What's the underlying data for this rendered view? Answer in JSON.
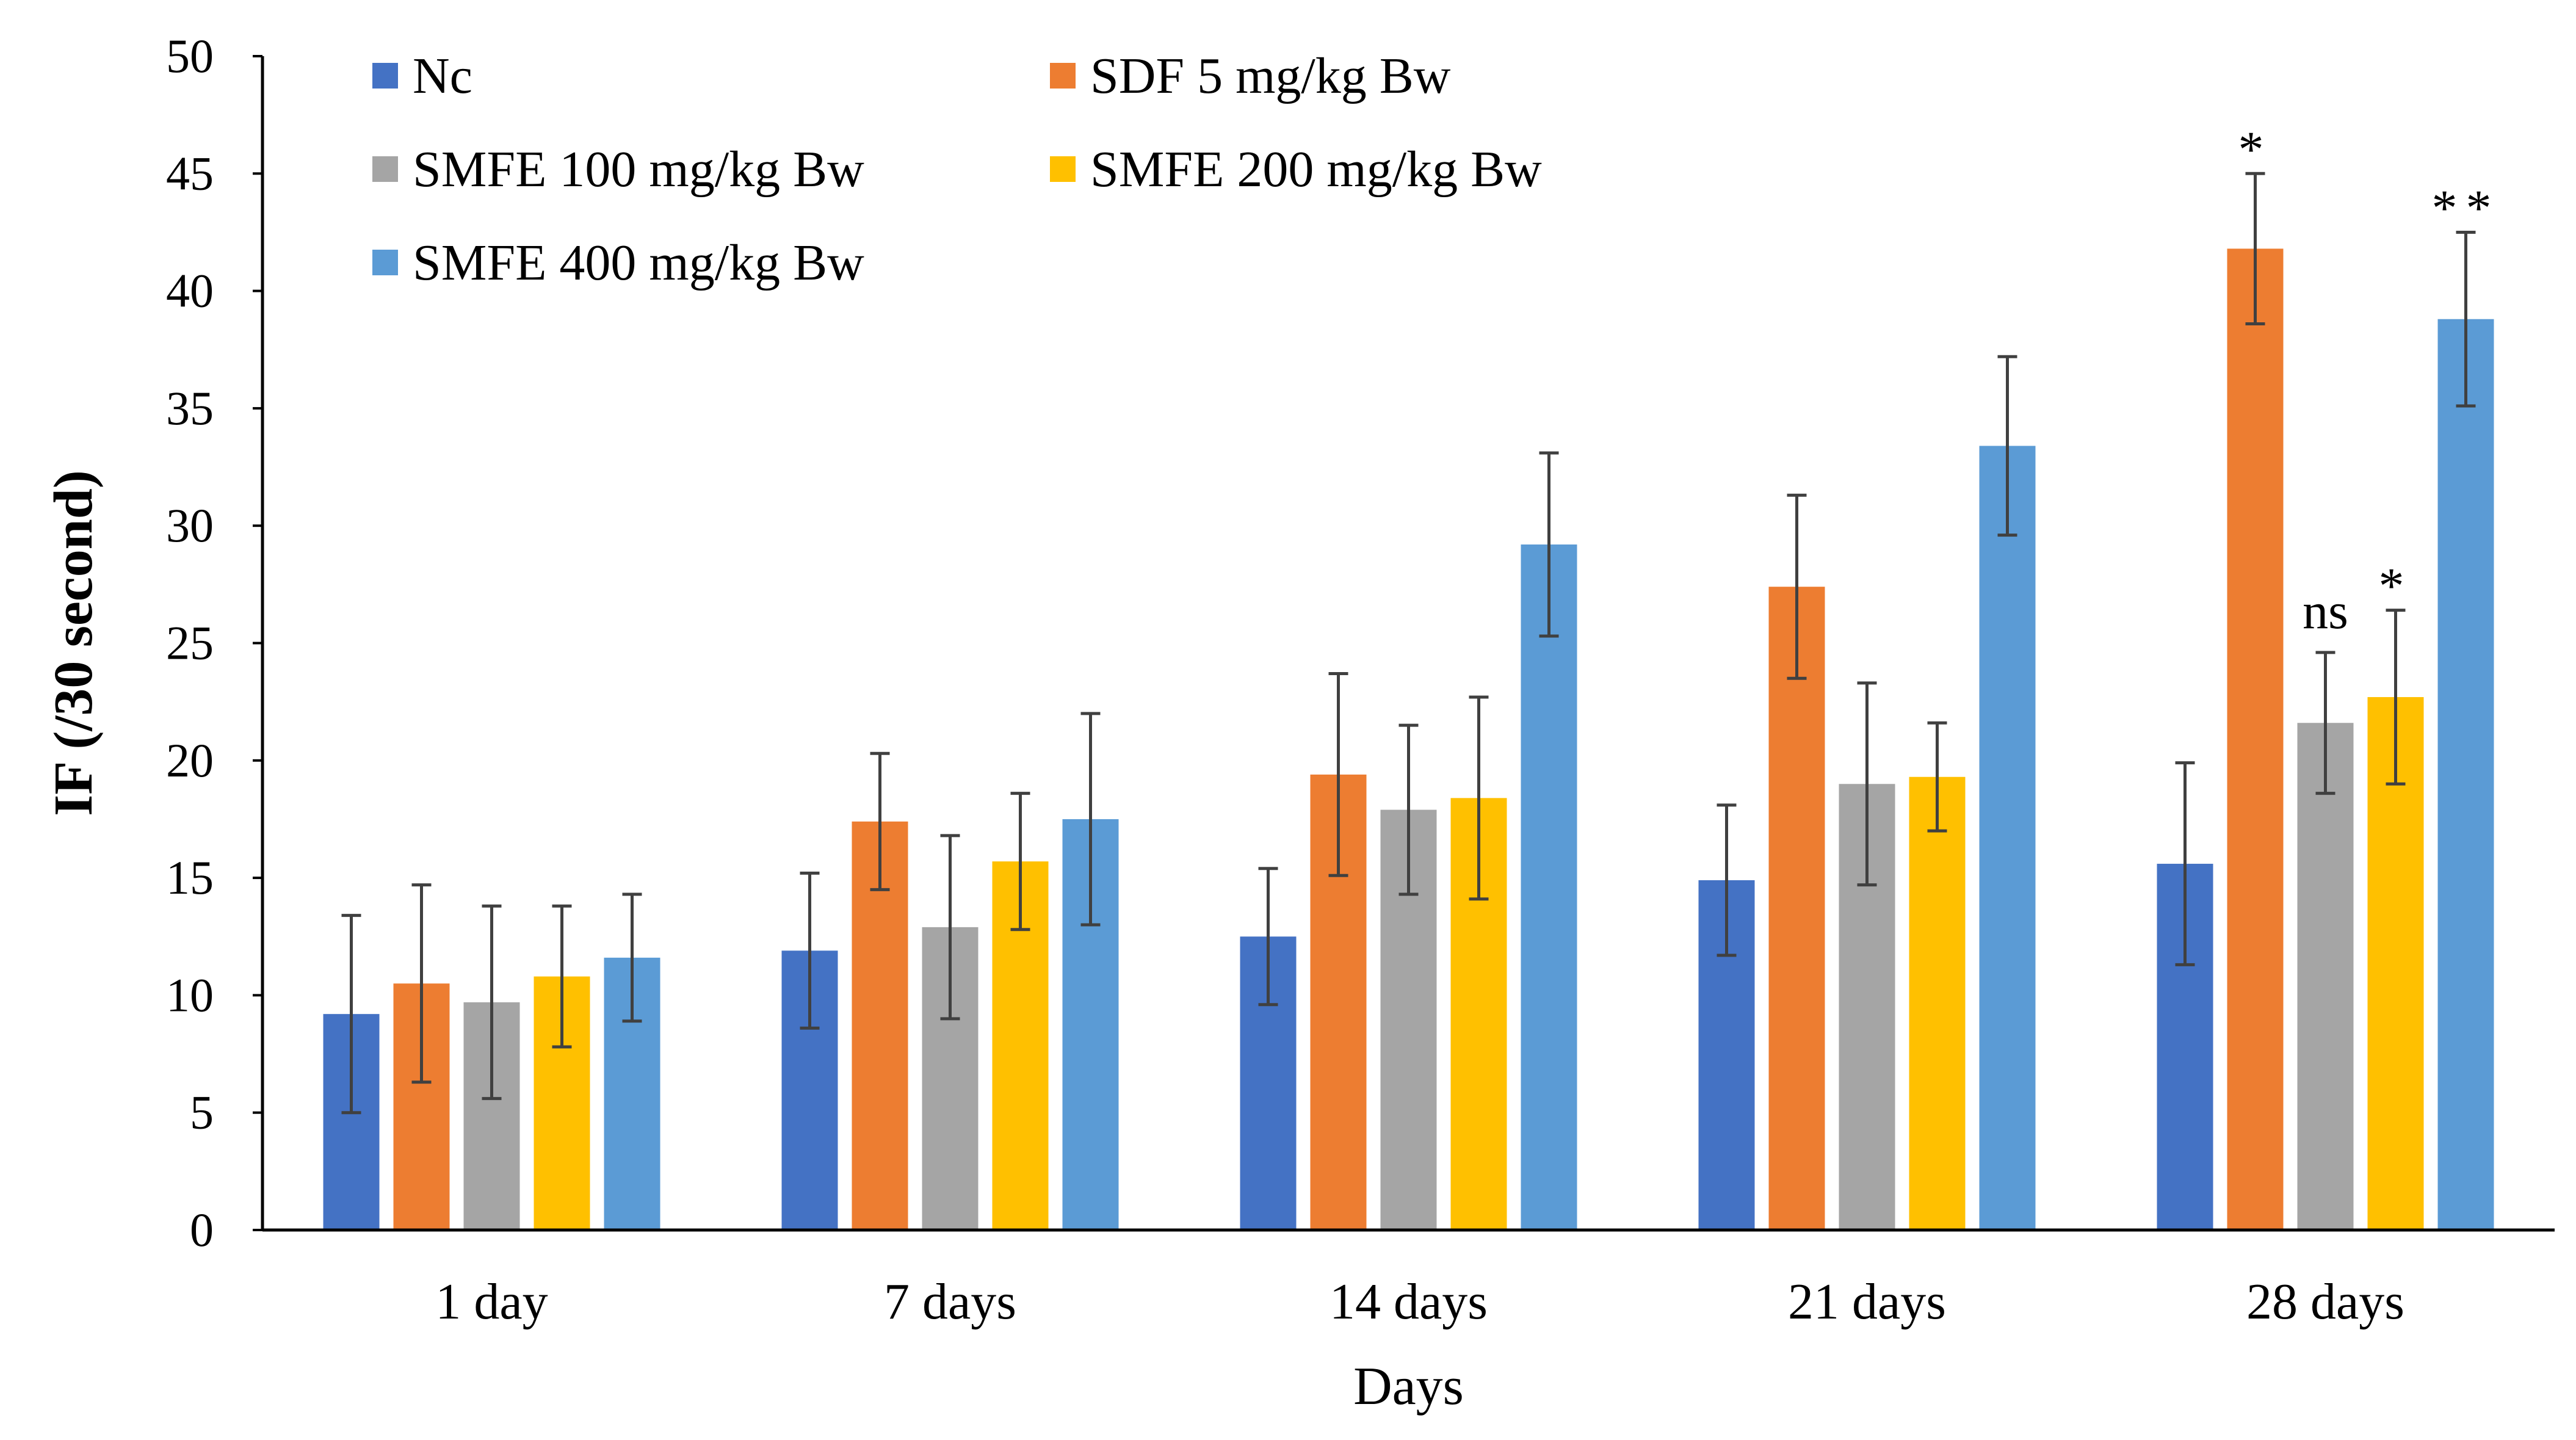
{
  "chart_data": {
    "type": "bar",
    "title": "",
    "xlabel": "Days",
    "ylabel": "IF (/30 second)",
    "ylim": [
      0,
      50
    ],
    "yticks": [
      0,
      5,
      10,
      15,
      20,
      25,
      30,
      35,
      40,
      45,
      50
    ],
    "grid": false,
    "legend_position": "top-left",
    "categories": [
      "1 day",
      "7 days",
      "14 days",
      "21 days",
      "28 days"
    ],
    "series": [
      {
        "name": "Nc",
        "color": "#4472C4",
        "values": [
          9.2,
          11.9,
          12.5,
          14.9,
          15.6
        ],
        "errors": [
          4.2,
          3.3,
          2.9,
          3.2,
          4.3
        ]
      },
      {
        "name": "SDF 5 mg/kg Bw",
        "color": "#ED7D31",
        "values": [
          10.5,
          17.4,
          19.4,
          27.4,
          41.8
        ],
        "errors": [
          4.2,
          2.9,
          4.3,
          3.9,
          3.2
        ]
      },
      {
        "name": "SMFE 100 mg/kg Bw",
        "color": "#A5A5A5",
        "values": [
          9.7,
          12.9,
          17.9,
          19.0,
          21.6
        ],
        "errors": [
          4.1,
          3.9,
          3.6,
          4.3,
          3.0
        ]
      },
      {
        "name": "SMFE 200 mg/kg Bw",
        "color": "#FFC000",
        "values": [
          10.8,
          15.7,
          18.4,
          19.3,
          22.7
        ],
        "errors": [
          3.0,
          2.9,
          4.3,
          2.3,
          3.7
        ]
      },
      {
        "name": "SMFE 400 mg/kg Bw",
        "color": "#5B9BD5",
        "values": [
          11.6,
          17.5,
          29.2,
          33.4,
          38.8
        ],
        "errors": [
          2.7,
          4.5,
          3.9,
          3.8,
          3.7
        ]
      }
    ],
    "annotations": [
      {
        "category": "28 days",
        "series": "SDF 5 mg/kg Bw",
        "text": "*"
      },
      {
        "category": "28 days",
        "series": "SMFE 100 mg/kg Bw",
        "text": "ns"
      },
      {
        "category": "28 days",
        "series": "SMFE 200 mg/kg Bw",
        "text": "*"
      },
      {
        "category": "28 days",
        "series": "SMFE 400 mg/kg Bw",
        "text": "**"
      }
    ]
  }
}
